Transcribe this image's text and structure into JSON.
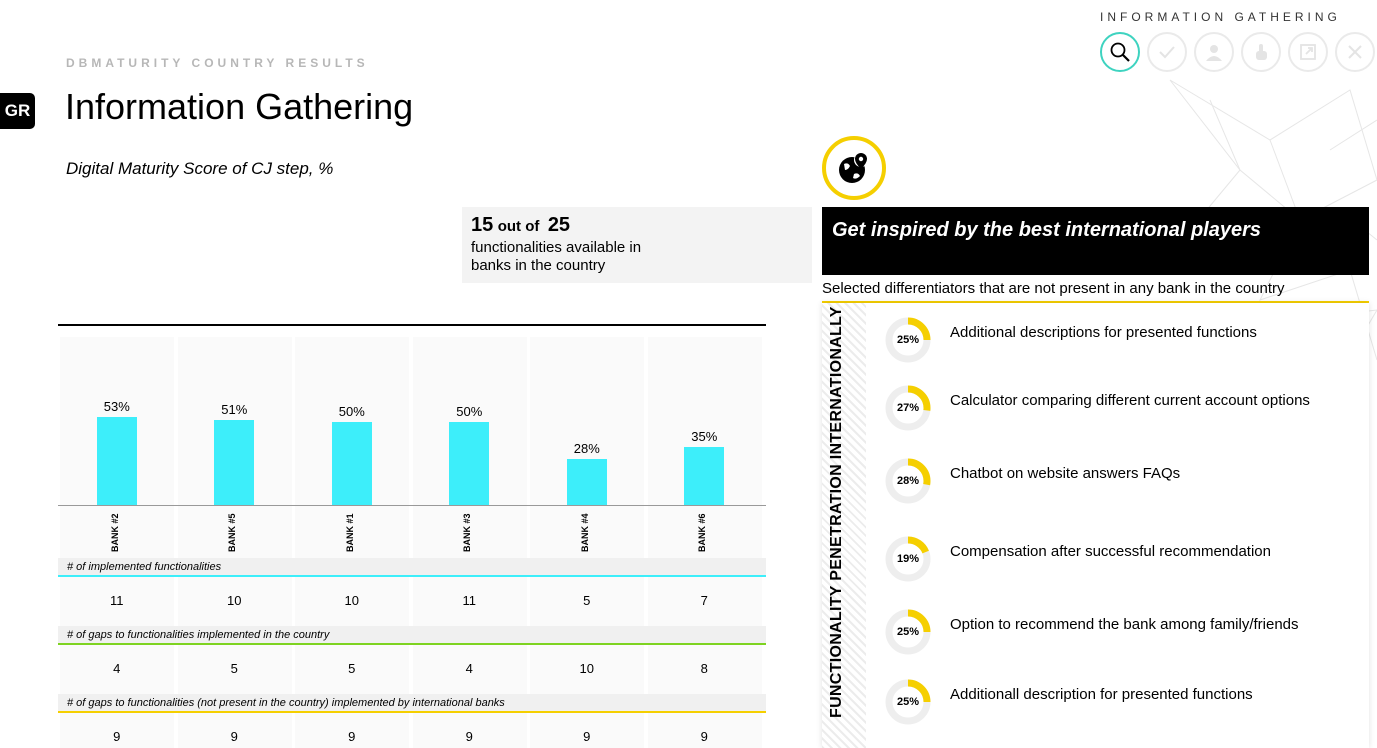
{
  "step_nav": {
    "title": "INFORMATION GATHERING",
    "steps": [
      {
        "icon": "magnifier-icon",
        "active": true
      },
      {
        "icon": "check-icon",
        "active": false
      },
      {
        "icon": "person-icon",
        "active": false
      },
      {
        "icon": "hand-icon",
        "active": false
      },
      {
        "icon": "expand-icon",
        "active": false
      },
      {
        "icon": "close-icon",
        "active": false
      }
    ]
  },
  "header": {
    "country_code": "GR",
    "overline": "DBMATURITY COUNTRY RESULTS",
    "title": "Information Gathering",
    "subtitle": "Digital Maturity Score of CJ step, %"
  },
  "functionalities": {
    "available": "15",
    "out_of_label": "out of",
    "total": "25",
    "description": "functionalities available in banks in the country"
  },
  "chart_data": {
    "type": "bar",
    "categories": [
      "BANK #2",
      "BANK #5",
      "BANK #1",
      "BANK #3",
      "BANK #4",
      "BANK #6"
    ],
    "values": [
      53,
      51,
      50,
      50,
      28,
      35
    ],
    "value_labels": [
      "53%",
      "51%",
      "50%",
      "50%",
      "28%",
      "35%"
    ],
    "unit": "%",
    "ylim": [
      0,
      100
    ],
    "bar_color": "#3deefa"
  },
  "table": {
    "rows": [
      {
        "header": "# of implemented functionalities",
        "values": [
          "11",
          "10",
          "10",
          "11",
          "5",
          "7"
        ],
        "color": "#3deefa"
      },
      {
        "header": "# of gaps to functionalities implemented in the country",
        "values": [
          "4",
          "5",
          "5",
          "4",
          "10",
          "8"
        ],
        "color": "#7ed321"
      },
      {
        "header": "# of gaps to functionalities (not present in the country) implemented by international banks",
        "values": [
          "9",
          "9",
          "9",
          "9",
          "9",
          "9"
        ],
        "color": "#f5cf00"
      }
    ]
  },
  "inspiration": {
    "icon": "globe-pin-icon",
    "title": "Get inspired by the best international players",
    "note": "Selected differentiators that are not present in any bank in the country",
    "axis_label": "FUNCTIONALITY PENETRATION INTERNATIONALLY",
    "accent_color": "#f5cf00",
    "items": [
      {
        "pct_label": "25%",
        "pct": 25,
        "text": "Additional descriptions for presented functions"
      },
      {
        "pct_label": "27%",
        "pct": 27,
        "text": "Calculator comparing different current account options"
      },
      {
        "pct_label": "28%",
        "pct": 28,
        "text": "Chatbot on website answers FAQs"
      },
      {
        "pct_label": "19%",
        "pct": 19,
        "text": "Compensation after successful recommendation"
      },
      {
        "pct_label": "25%",
        "pct": 25,
        "text": "Option to recommend the bank among family/friends"
      },
      {
        "pct_label": "25%",
        "pct": 25,
        "text": "Additionall description for presented functions"
      }
    ]
  }
}
